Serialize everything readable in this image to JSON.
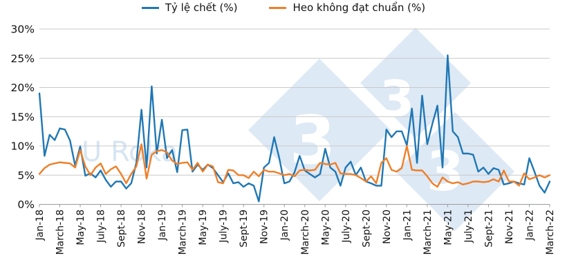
{
  "legend": {
    "items": [
      {
        "label": "Tỷ lệ chết (%)",
        "color": "#1f77b4"
      },
      {
        "label": "Heo không đạt chuẩn (%)",
        "color": "#ef7e27"
      }
    ]
  },
  "watermark": {
    "glyph": "3",
    "faint_text": "U Roka",
    "tile_color": "#dde9f5",
    "glyph_color": "#ffffff"
  },
  "chart_data": {
    "type": "line",
    "title": "",
    "xlabel": "",
    "ylabel": "",
    "ylim": [
      0,
      30
    ],
    "grid": true,
    "legend_position": "top-center",
    "x_frequency": "semimonthly (2 points per month), Jan-18 to March-22",
    "y_tick_labels": [
      "0%",
      "5%",
      "10%",
      "15%",
      "20%",
      "25%",
      "30%"
    ],
    "x_tick_labels": [
      "Jan-18",
      "March-18",
      "May-18",
      "July-18",
      "Sept-18",
      "Nov-18",
      "Jan-19",
      "March-19",
      "May-19",
      "July-19",
      "Sept-19",
      "Nov-19",
      "Jan-20",
      "March-20",
      "May-20",
      "July-20",
      "Sept-20",
      "Nov-20",
      "Jan-21",
      "March-21",
      "May-21",
      "July-21",
      "Sept-21",
      "Nov-21",
      "Jan-22",
      "March-22"
    ],
    "series": [
      {
        "name": "Tỷ lệ chết (%)",
        "color": "#1f77b4",
        "values": [
          19.0,
          8.3,
          11.9,
          11.0,
          13.0,
          12.8,
          10.9,
          6.6,
          9.9,
          4.9,
          5.3,
          4.6,
          5.8,
          4.2,
          3.0,
          3.9,
          3.9,
          2.7,
          3.6,
          7.1,
          16.2,
          6.3,
          20.2,
          8.7,
          14.5,
          7.9,
          9.3,
          5.5,
          12.7,
          12.8,
          5.6,
          6.8,
          5.9,
          6.8,
          6.2,
          5.0,
          3.8,
          5.3,
          3.6,
          3.8,
          3.0,
          3.6,
          3.2,
          0.5,
          6.3,
          7.1,
          11.5,
          7.9,
          3.6,
          3.9,
          5.5,
          8.3,
          5.8,
          5.2,
          4.6,
          5.2,
          9.5,
          6.3,
          5.6,
          3.2,
          6.3,
          7.3,
          5.0,
          6.3,
          3.9,
          3.6,
          3.2,
          3.2,
          12.8,
          11.5,
          12.5,
          12.5,
          10.1,
          16.4,
          7.1,
          18.6,
          10.3,
          13.8,
          16.9,
          6.3,
          25.5,
          12.5,
          11.5,
          8.7,
          8.7,
          8.5,
          5.6,
          6.3,
          5.2,
          6.2,
          5.9,
          3.4,
          3.6,
          3.9,
          3.6,
          3.4,
          7.9,
          5.6,
          3.2,
          2.0,
          3.9
        ]
      },
      {
        "name": "Heo không đạt chuẩn (%)",
        "color": "#ef7e27",
        "values": [
          5.2,
          6.2,
          6.8,
          7.0,
          7.2,
          7.1,
          7.0,
          6.3,
          9.3,
          6.5,
          5.0,
          6.3,
          7.0,
          5.2,
          6.0,
          6.5,
          5.2,
          3.6,
          5.2,
          6.5,
          10.3,
          4.4,
          8.5,
          9.1,
          9.3,
          8.9,
          7.5,
          6.9,
          7.1,
          7.2,
          5.9,
          7.1,
          5.6,
          6.8,
          6.5,
          3.8,
          3.6,
          5.9,
          5.8,
          5.0,
          5.0,
          4.5,
          5.6,
          4.8,
          5.9,
          5.6,
          5.6,
          5.3,
          5.0,
          5.2,
          4.8,
          5.8,
          5.9,
          5.8,
          5.9,
          7.1,
          6.9,
          6.8,
          7.1,
          5.3,
          5.2,
          5.2,
          5.0,
          4.5,
          3.9,
          4.8,
          3.6,
          7.1,
          7.9,
          5.9,
          5.6,
          6.2,
          10.0,
          5.9,
          5.8,
          5.8,
          4.8,
          3.6,
          3.0,
          4.6,
          3.9,
          3.6,
          3.8,
          3.4,
          3.6,
          3.9,
          3.9,
          3.8,
          3.9,
          4.3,
          3.9,
          5.8,
          3.9,
          3.9,
          3.2,
          5.3,
          4.3,
          4.6,
          5.0,
          4.6,
          5.0
        ]
      }
    ]
  }
}
